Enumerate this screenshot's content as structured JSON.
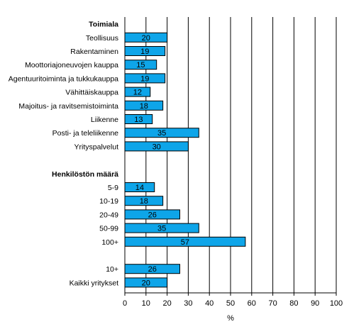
{
  "chart_data": {
    "type": "bar",
    "orientation": "horizontal",
    "title": "",
    "xlabel": "%",
    "ylabel": "",
    "xlim": [
      0,
      100
    ],
    "xticks": [
      0,
      10,
      20,
      30,
      40,
      50,
      60,
      70,
      80,
      90,
      100
    ],
    "grid": "vertical",
    "legend": "none",
    "bar_color": "#0ea5e9",
    "bar_edge_color": "#000000",
    "groups": [
      {
        "heading": "Toimiala",
        "categories": [
          "Teollisuus",
          "Rakentaminen",
          "Moottoriajoneuvojen kauppa",
          "Agentuuritoiminta ja tukkukauppa",
          "Vähittäiskauppa",
          "Majoitus- ja ravitsemistoiminta",
          "Liikenne",
          "Posti- ja teleliikenne",
          "Yrityspalvelut"
        ],
        "values": [
          20,
          19,
          15,
          19,
          12,
          18,
          13,
          35,
          30
        ]
      },
      {
        "heading": "Henkilöstön määrä",
        "categories": [
          "5-9",
          "10-19",
          "20-49",
          "50-99",
          "100+"
        ],
        "values": [
          14,
          18,
          26,
          35,
          57
        ]
      },
      {
        "heading": "",
        "categories": [
          "10+",
          "Kaikki yritykset"
        ],
        "values": [
          26,
          20
        ]
      }
    ]
  }
}
